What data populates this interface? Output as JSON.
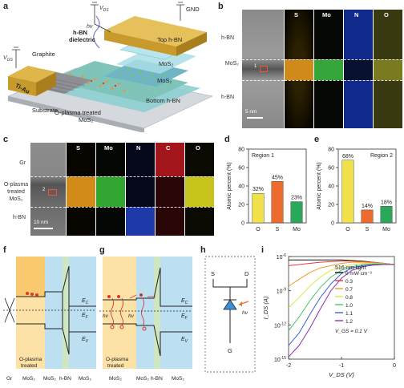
{
  "panels": {
    "a": {
      "letter": "a",
      "labels": {
        "gnd": "GND",
        "top_hbn": "Top h-BN",
        "hv": "hν",
        "hbn_dielectric": "h-BN\ndielectric",
        "mos2_top": "MoS₂",
        "mos2_bottom": "MoS₂",
        "graphite": "Graphite",
        "vgs": "V_GS",
        "vds": "V_DS",
        "tiau": "Ti-Au",
        "substrate": "Substrate",
        "o_plasma": "O-plasma treated",
        "o_plasma2": "MoS₂",
        "bottom_hbn": "Bottom h-BN"
      }
    },
    "b": {
      "letter": "b",
      "row_labels": [
        "h-BN",
        "MoS₂",
        "h-BN"
      ],
      "elements": [
        "S",
        "Mo",
        "N",
        "O"
      ],
      "scalebar": "5 nm",
      "region_mark": "1"
    },
    "c": {
      "letter": "c",
      "row_labels": [
        "Gr",
        "O-plasma\ntreated\nMoS₂",
        "h-BN"
      ],
      "elements": [
        "S",
        "Mo",
        "N",
        "C",
        "O"
      ],
      "scalebar": "10 nm",
      "region_mark": "2"
    },
    "d": {
      "letter": "d",
      "region": "Region 1"
    },
    "e": {
      "letter": "e",
      "region": "Region 2"
    },
    "f": {
      "letter": "f",
      "bottom_labels": [
        "Gr",
        "O-plasma treated MoS₂",
        "MoS₂",
        "h-BN",
        "MoS₂"
      ],
      "levels": [
        "E_C",
        "E_F",
        "E_V"
      ]
    },
    "g": {
      "letter": "g",
      "bottom_labels": [
        "O-plasma treated",
        "MoS₂",
        "h-BN",
        "MoS₂"
      ],
      "levels": [
        "E_C",
        "E_F",
        "E_V"
      ],
      "hv": "hν"
    },
    "h": {
      "letter": "h",
      "s": "S",
      "d": "D",
      "g": "G",
      "hv": "hν"
    },
    "i": {
      "letter": "i"
    }
  },
  "chart_data": [
    {
      "type": "bar",
      "panel": "d",
      "title": "Region 1",
      "categories": [
        "O",
        "S",
        "Mo"
      ],
      "values": [
        32,
        45,
        23
      ],
      "value_labels": [
        "32%",
        "45%",
        "23%"
      ],
      "colors": [
        "#f0e04a",
        "#ec6b2d",
        "#2aa85a"
      ],
      "ylabel": "Atomic percent (%)",
      "ylim": [
        0,
        80
      ],
      "yticks": [
        0,
        20,
        40,
        60,
        80
      ]
    },
    {
      "type": "bar",
      "panel": "e",
      "title": "Region 2",
      "categories": [
        "O",
        "S",
        "Mo"
      ],
      "values": [
        68,
        14,
        18
      ],
      "value_labels": [
        "68%",
        "14%",
        "18%"
      ],
      "colors": [
        "#f0e04a",
        "#ec6b2d",
        "#2aa85a"
      ],
      "ylabel": "Atomic percent (%)",
      "ylim": [
        0,
        80
      ],
      "yticks": [
        0,
        20,
        40,
        60,
        80
      ]
    },
    {
      "type": "line",
      "panel": "i",
      "xlabel": "V_DS (V)",
      "ylabel": "I_DS (A)",
      "xlim": [
        -2,
        0
      ],
      "xticks": [
        -2,
        -1,
        0
      ],
      "y_scale": "log",
      "ylim_exp": [
        -15,
        -6
      ],
      "ytick_exp": [
        -15,
        -12,
        -9,
        -6
      ],
      "legend_title": "516-nm light",
      "legend_note": "V_GS = 0.1 V",
      "series": [
        {
          "name": "0 mW cm⁻²",
          "color": "#111111",
          "x": [
            -2,
            -1.8,
            -1.6,
            -1.4,
            -1.2,
            -1.0,
            -0.8,
            -0.6,
            -0.4,
            -0.2,
            0
          ],
          "y_exp": [
            -6.3,
            -6.3,
            -6.3,
            -6.3,
            -6.3,
            -6.3,
            -6.35,
            -6.4,
            -6.5,
            -6.6,
            -6.7
          ]
        },
        {
          "name": "0.3",
          "color": "#e23b3b",
          "x": [
            -2,
            -1.8,
            -1.6,
            -1.4,
            -1.2,
            -1.0,
            -0.8,
            -0.6,
            -0.4,
            -0.2,
            0
          ],
          "y_exp": [
            -6.8,
            -6.7,
            -6.6,
            -6.5,
            -6.45,
            -6.4,
            -6.4,
            -6.45,
            -6.5,
            -6.6,
            -6.7
          ]
        },
        {
          "name": "0.7",
          "color": "#f39a2b",
          "x": [
            -2,
            -1.8,
            -1.6,
            -1.4,
            -1.2,
            -1.0,
            -0.8,
            -0.6,
            -0.4,
            -0.2,
            0
          ],
          "y_exp": [
            -8.6,
            -8.0,
            -7.4,
            -7.0,
            -6.8,
            -6.6,
            -6.5,
            -6.5,
            -6.55,
            -6.6,
            -6.7
          ]
        },
        {
          "name": "0.8",
          "color": "#d9e84a",
          "x": [
            -2,
            -1.8,
            -1.6,
            -1.4,
            -1.2,
            -1.0,
            -0.8,
            -0.6,
            -0.4,
            -0.2,
            0
          ],
          "y_exp": [
            -10.5,
            -9.6,
            -8.6,
            -7.8,
            -7.2,
            -6.9,
            -6.7,
            -6.6,
            -6.6,
            -6.65,
            -6.7
          ]
        },
        {
          "name": "1.0",
          "color": "#4cc46a",
          "x": [
            -2,
            -1.8,
            -1.6,
            -1.4,
            -1.2,
            -1.0,
            -0.8,
            -0.6,
            -0.4,
            -0.2,
            0
          ],
          "y_exp": [
            -12.5,
            -11.3,
            -9.9,
            -8.7,
            -7.8,
            -7.2,
            -6.9,
            -6.7,
            -6.65,
            -6.65,
            -6.7
          ]
        },
        {
          "name": "1.1",
          "color": "#3a63d8",
          "x": [
            -2,
            -1.8,
            -1.6,
            -1.4,
            -1.2,
            -1.0,
            -0.8,
            -0.6,
            -0.4,
            -0.2,
            0
          ],
          "y_exp": [
            -13.8,
            -12.7,
            -11.1,
            -9.6,
            -8.4,
            -7.5,
            -7.0,
            -6.8,
            -6.7,
            -6.7,
            -6.7
          ]
        },
        {
          "name": "1.2",
          "color": "#8b2fb5",
          "x": [
            -2,
            -1.8,
            -1.6,
            -1.4,
            -1.2,
            -1.0,
            -0.8,
            -0.6,
            -0.4,
            -0.2,
            0
          ],
          "y_exp": [
            -14.8,
            -13.8,
            -12.3,
            -10.6,
            -9.0,
            -7.9,
            -7.2,
            -6.9,
            -6.75,
            -6.7,
            -6.7
          ]
        }
      ]
    }
  ]
}
